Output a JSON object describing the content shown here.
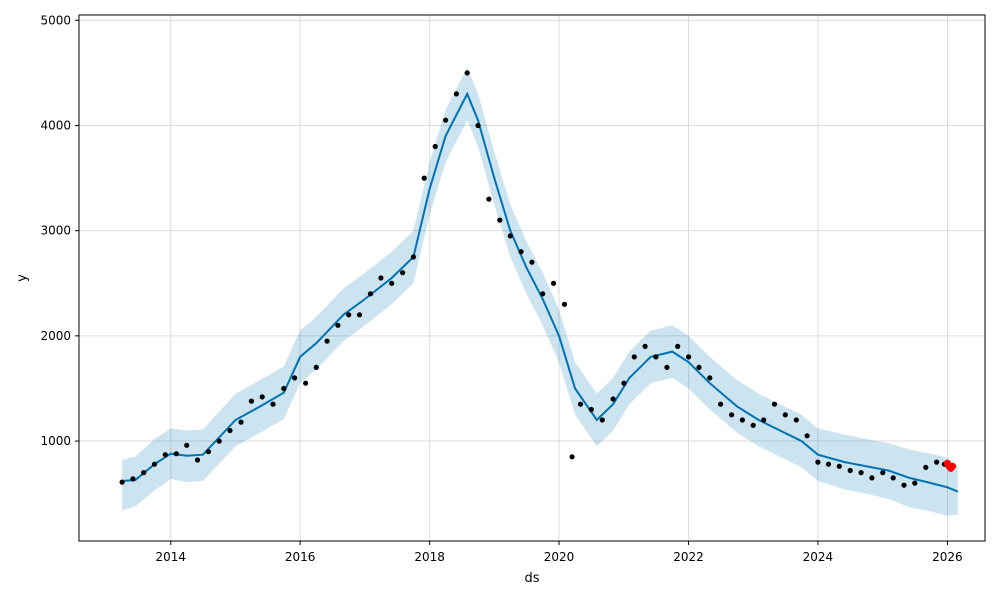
{
  "chart_data": {
    "type": "line",
    "xlabel": "ds",
    "ylabel": "y",
    "x_range": [
      "2012-08-01",
      "2026-08-01"
    ],
    "ylim": [
      50,
      5050
    ],
    "grid": true,
    "x_ticks": [
      {
        "date": "2014-01-01",
        "label": "2014"
      },
      {
        "date": "2016-01-01",
        "label": "2016"
      },
      {
        "date": "2018-01-01",
        "label": "2018"
      },
      {
        "date": "2020-01-01",
        "label": "2020"
      },
      {
        "date": "2022-01-01",
        "label": "2022"
      },
      {
        "date": "2024-01-01",
        "label": "2024"
      },
      {
        "date": "2026-01-01",
        "label": "2026"
      }
    ],
    "y_ticks": [
      {
        "value": 1000,
        "label": "1000"
      },
      {
        "value": 2000,
        "label": "2000"
      },
      {
        "value": 3000,
        "label": "3000"
      },
      {
        "value": 4000,
        "label": "4000"
      },
      {
        "value": 5000,
        "label": "5000"
      }
    ],
    "colors": {
      "observed": "#000000",
      "forecast": "#0072B2",
      "interval": "#0072B2",
      "highlight": "#ff0000",
      "grid": "#dddddd"
    },
    "series": [
      {
        "role": "forecast",
        "x": [
          "2013-04-01",
          "2013-06-15",
          "2013-10-01",
          "2014-01-01",
          "2014-04-01",
          "2014-07-01",
          "2015-01-01",
          "2015-06-01",
          "2015-10-01",
          "2016-01-01",
          "2016-04-01",
          "2016-09-01",
          "2017-01-01",
          "2017-06-01",
          "2017-10-01",
          "2018-01-01",
          "2018-04-01",
          "2018-08-01",
          "2018-10-01",
          "2019-01-01",
          "2019-04-01",
          "2019-07-01",
          "2019-10-01",
          "2020-01-01",
          "2020-04-01",
          "2020-08-01",
          "2020-11-01",
          "2021-02-01",
          "2021-06-01",
          "2021-10-01",
          "2022-01-01",
          "2022-05-01",
          "2022-10-01",
          "2023-02-01",
          "2023-06-01",
          "2023-10-01",
          "2024-01-01",
          "2024-06-01",
          "2024-10-01",
          "2025-02-01",
          "2025-06-01",
          "2025-10-01",
          "2026-01-01",
          "2026-03-01"
        ],
        "y": [
          620,
          630,
          780,
          880,
          860,
          870,
          1200,
          1340,
          1460,
          1800,
          1930,
          2200,
          2350,
          2550,
          2750,
          3400,
          3900,
          4300,
          4050,
          3500,
          3000,
          2650,
          2350,
          2000,
          1500,
          1200,
          1350,
          1600,
          1800,
          1850,
          1750,
          1550,
          1330,
          1200,
          1100,
          1000,
          870,
          800,
          760,
          720,
          650,
          600,
          560,
          520
        ]
      },
      {
        "role": "interval",
        "x": [
          "2013-04-01",
          "2013-06-15",
          "2013-10-01",
          "2014-01-01",
          "2014-04-01",
          "2014-07-01",
          "2015-01-01",
          "2015-06-01",
          "2015-10-01",
          "2016-01-01",
          "2016-04-01",
          "2016-09-01",
          "2017-01-01",
          "2017-06-01",
          "2017-10-01",
          "2018-01-01",
          "2018-04-01",
          "2018-08-01",
          "2018-10-01",
          "2019-01-01",
          "2019-04-01",
          "2019-07-01",
          "2019-10-01",
          "2020-01-01",
          "2020-04-01",
          "2020-08-01",
          "2020-11-01",
          "2021-02-01",
          "2021-06-01",
          "2021-10-01",
          "2022-01-01",
          "2022-05-01",
          "2022-10-01",
          "2023-02-01",
          "2023-06-01",
          "2023-10-01",
          "2024-01-01",
          "2024-06-01",
          "2024-10-01",
          "2025-02-01",
          "2025-06-01",
          "2025-10-01",
          "2026-01-01",
          "2026-03-01"
        ],
        "lower": [
          340,
          380,
          530,
          640,
          610,
          620,
          950,
          1090,
          1210,
          1550,
          1680,
          1950,
          2100,
          2300,
          2500,
          3150,
          3650,
          4050,
          3800,
          3250,
          2750,
          2400,
          2100,
          1750,
          1250,
          950,
          1100,
          1350,
          1550,
          1600,
          1500,
          1300,
          1080,
          950,
          850,
          750,
          620,
          540,
          500,
          450,
          370,
          330,
          290,
          300
        ],
        "upper": [
          820,
          850,
          1020,
          1120,
          1100,
          1110,
          1450,
          1590,
          1710,
          2050,
          2180,
          2450,
          2600,
          2800,
          3000,
          3650,
          4150,
          4550,
          4300,
          3750,
          3250,
          2900,
          2600,
          2250,
          1750,
          1450,
          1600,
          1850,
          2050,
          2100,
          2000,
          1800,
          1580,
          1450,
          1350,
          1250,
          1120,
          1060,
          1020,
          980,
          920,
          880,
          840,
          760
        ]
      },
      {
        "role": "observed",
        "x": [
          "2013-04-01",
          "2013-06-01",
          "2013-08-01",
          "2013-10-01",
          "2013-12-01",
          "2014-02-01",
          "2014-04-01",
          "2014-06-01",
          "2014-08-01",
          "2014-10-01",
          "2014-12-01",
          "2015-02-01",
          "2015-04-01",
          "2015-06-01",
          "2015-08-01",
          "2015-10-01",
          "2015-12-01",
          "2016-02-01",
          "2016-04-01",
          "2016-06-01",
          "2016-08-01",
          "2016-10-01",
          "2016-12-01",
          "2017-02-01",
          "2017-04-01",
          "2017-06-01",
          "2017-08-01",
          "2017-10-01",
          "2017-12-01",
          "2018-02-01",
          "2018-04-01",
          "2018-06-01",
          "2018-08-01",
          "2018-10-01",
          "2018-12-01",
          "2019-02-01",
          "2019-04-01",
          "2019-06-01",
          "2019-08-01",
          "2019-10-01",
          "2019-12-01",
          "2020-02-01",
          "2020-03-15",
          "2020-05-01",
          "2020-07-01",
          "2020-09-01",
          "2020-11-01",
          "2021-01-01",
          "2021-03-01",
          "2021-05-01",
          "2021-07-01",
          "2021-09-01",
          "2021-11-01",
          "2022-01-01",
          "2022-03-01",
          "2022-05-01",
          "2022-07-01",
          "2022-09-01",
          "2022-11-01",
          "2023-01-01",
          "2023-03-01",
          "2023-05-01",
          "2023-07-01",
          "2023-09-01",
          "2023-11-01",
          "2024-01-01",
          "2024-03-01",
          "2024-05-01",
          "2024-07-01",
          "2024-09-01",
          "2024-11-01",
          "2025-01-01",
          "2025-03-01",
          "2025-05-01",
          "2025-07-01",
          "2025-09-01",
          "2025-11-01",
          "2025-12-15"
        ],
        "y": [
          610,
          640,
          700,
          780,
          870,
          880,
          960,
          820,
          900,
          1000,
          1100,
          1180,
          1380,
          1420,
          1350,
          1500,
          1600,
          1550,
          1700,
          1950,
          2100,
          2200,
          2200,
          2400,
          2550,
          2500,
          2600,
          2750,
          3500,
          3800,
          4050,
          4300,
          4500,
          4000,
          3300,
          3100,
          2950,
          2800,
          2700,
          2400,
          2500,
          2300,
          850,
          1350,
          1300,
          1200,
          1400,
          1550,
          1800,
          1900,
          1800,
          1700,
          1900,
          1800,
          1700,
          1600,
          1350,
          1250,
          1200,
          1150,
          1200,
          1350,
          1250,
          1200,
          1050,
          800,
          780,
          760,
          720,
          700,
          650,
          700,
          650,
          580,
          600,
          750,
          800,
          780
        ]
      },
      {
        "role": "highlight",
        "x": [
          "2026-01-01",
          "2026-01-10",
          "2026-01-20",
          "2026-01-30"
        ],
        "y": [
          790,
          760,
          740,
          760
        ]
      }
    ]
  }
}
